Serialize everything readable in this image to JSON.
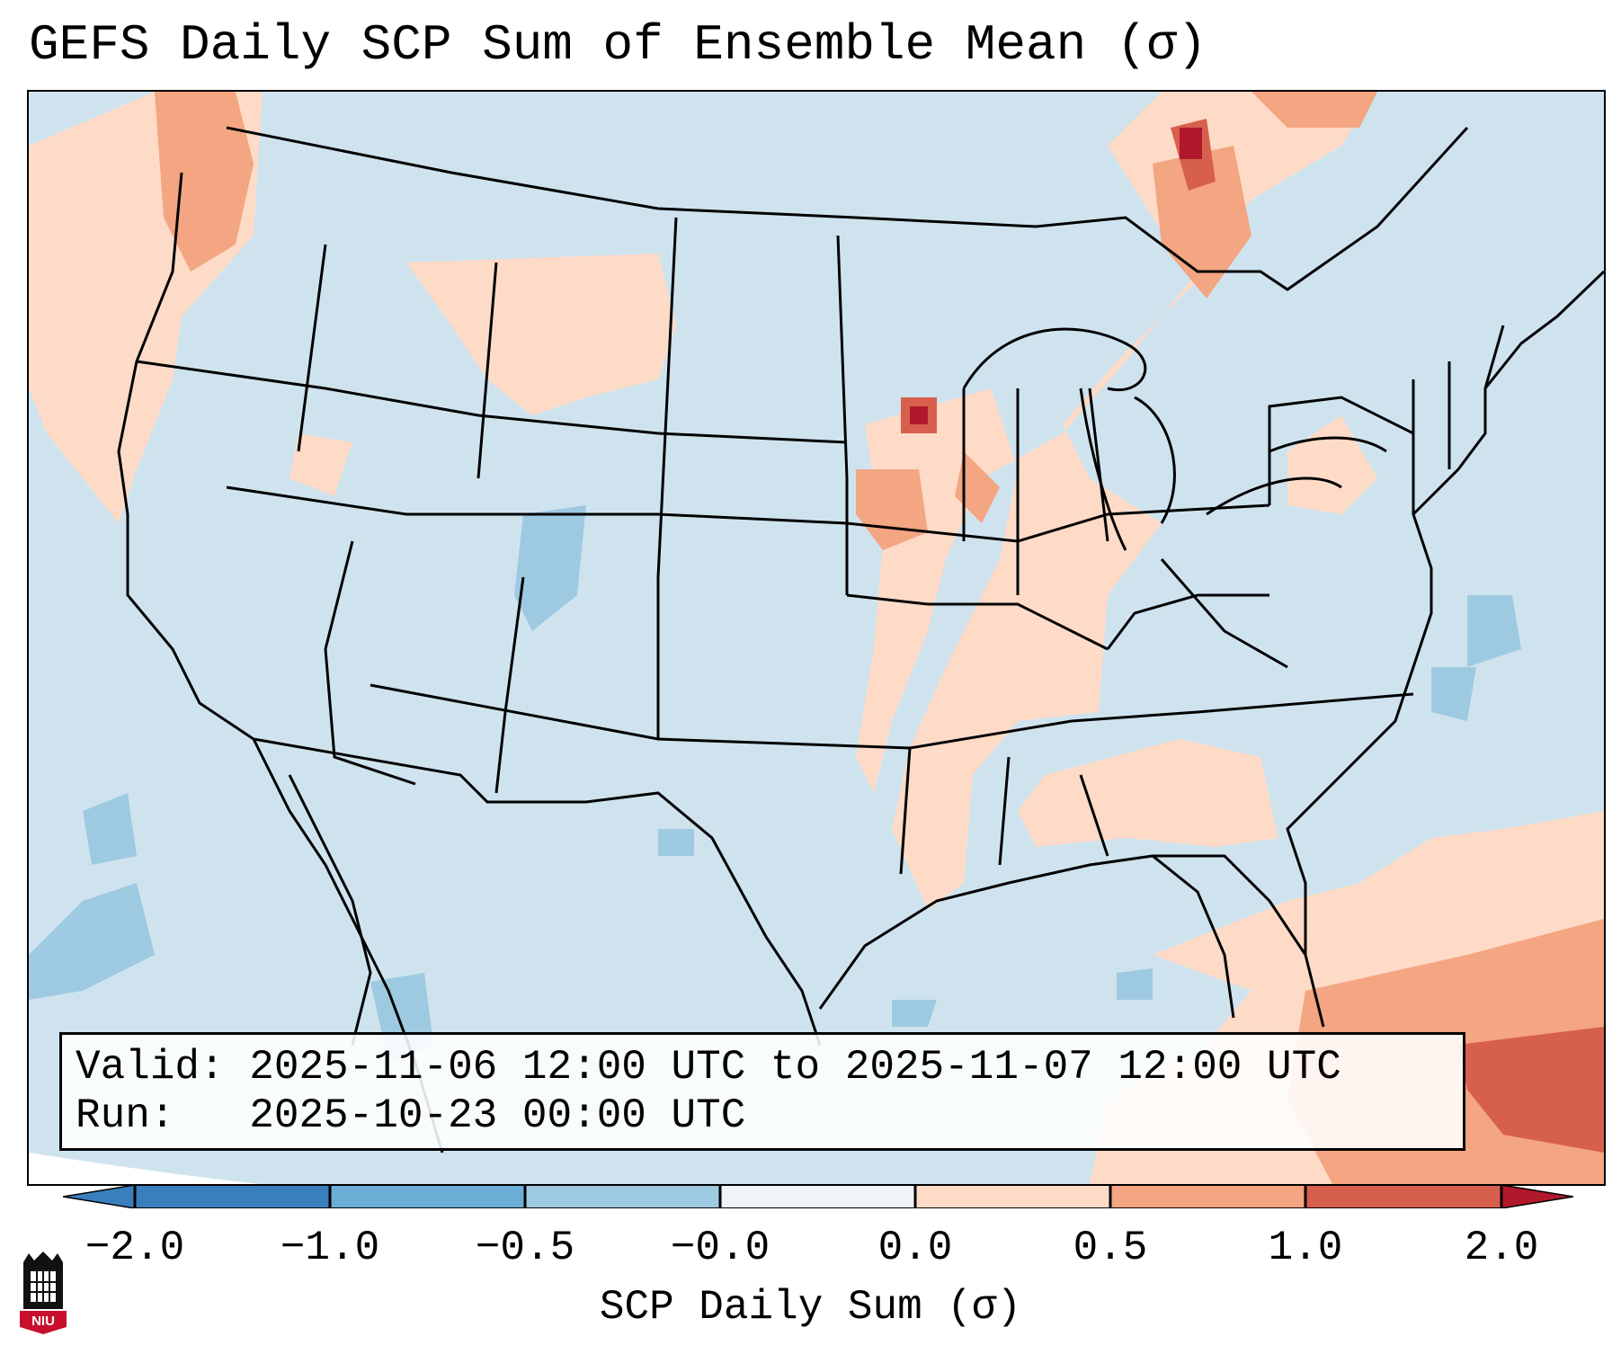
{
  "title": "GEFS Daily SCP Sum of Ensemble Mean (σ)",
  "info": {
    "valid_line": "Valid: 2025-11-06 12:00 UTC to 2025-11-07 12:00 UTC",
    "run_line": "Run:   2025-10-23 00:00 UTC"
  },
  "colorbar": {
    "label": "SCP Daily Sum (σ)",
    "ticks": [
      "−2.0",
      "−1.0",
      "−0.5",
      "−0.0",
      "0.0",
      "0.5",
      "1.0",
      "2.0"
    ],
    "colors": [
      "#3a7fbd",
      "#6baed6",
      "#9ecae1",
      "#d6e8f2",
      "#fddbc7",
      "#f4a582",
      "#d6604d",
      "#b2182b"
    ]
  },
  "map": {
    "background_color": "#cfe3ef",
    "region": "Contiguous United States"
  },
  "logo_text": "NIU"
}
